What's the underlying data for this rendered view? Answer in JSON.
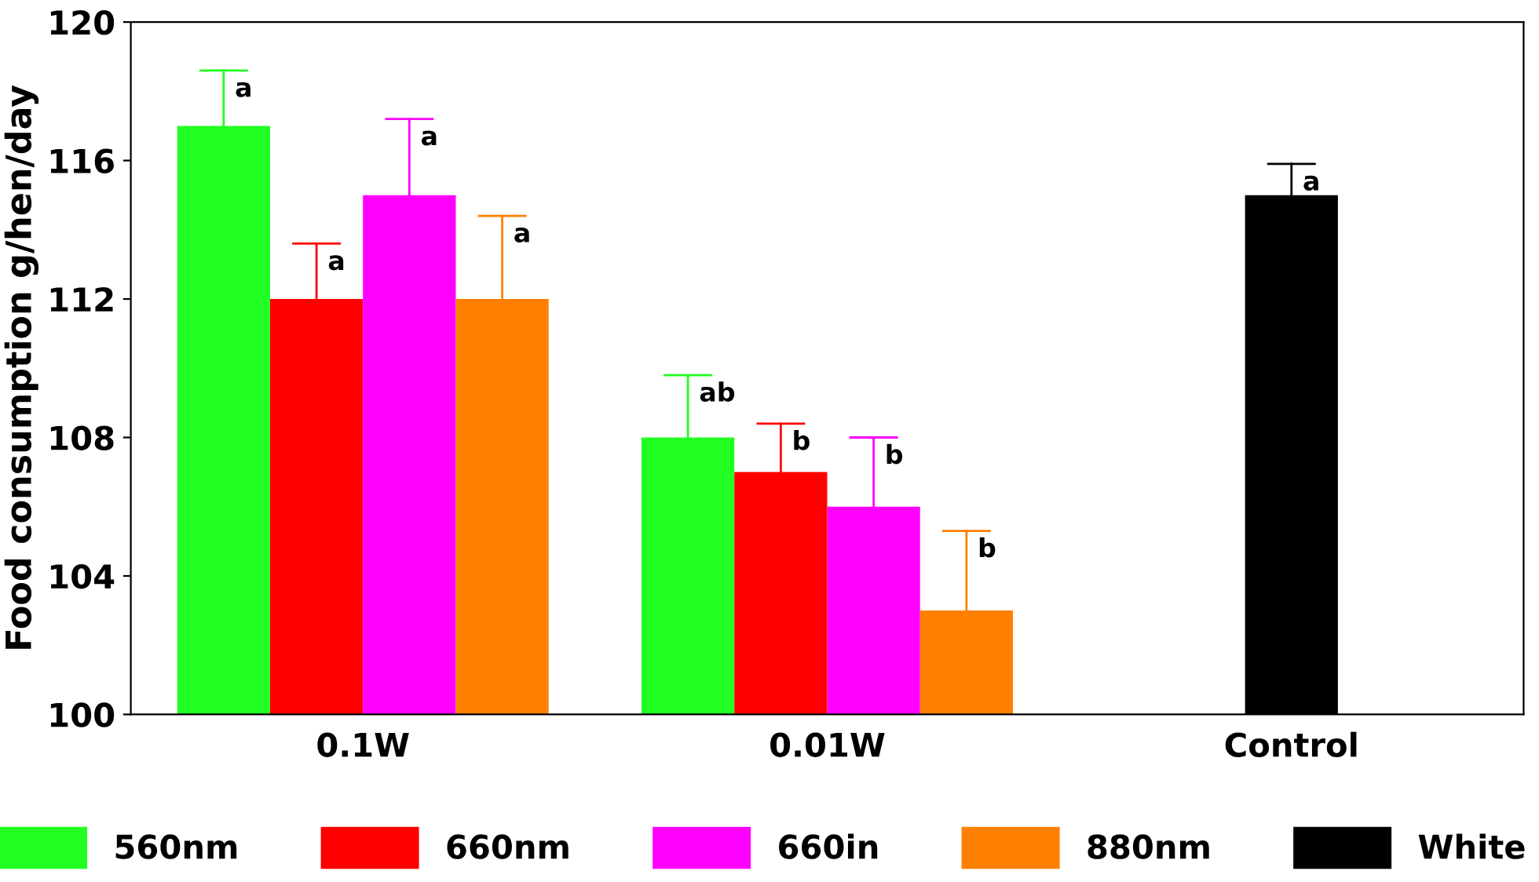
{
  "chart_data": {
    "type": "bar",
    "ylabel": "Food consumption g/hen/day",
    "categories": [
      "0.1W",
      "0.01W",
      "Control"
    ],
    "series": [
      {
        "name": "560nm",
        "color": "#22ff22",
        "values": [
          117,
          108,
          null
        ],
        "errors": [
          [
            117,
            118.6
          ],
          [
            108,
            109.8
          ],
          null
        ],
        "value_labels": [
          "a",
          "ab",
          null
        ]
      },
      {
        "name": "660nm",
        "color": "#ff0000",
        "values": [
          112,
          107,
          null
        ],
        "errors": [
          [
            112,
            113.6
          ],
          [
            107,
            108.4
          ],
          null
        ],
        "value_labels": [
          "a",
          "b",
          null
        ]
      },
      {
        "name": "660in",
        "color": "#ff00ff",
        "values": [
          115,
          106,
          null
        ],
        "errors": [
          [
            115,
            117.2
          ],
          [
            106,
            108.0
          ],
          null
        ],
        "value_labels": [
          "a",
          "b",
          null
        ]
      },
      {
        "name": "880nm",
        "color": "#ff8000",
        "values": [
          112,
          103,
          null
        ],
        "errors": [
          [
            112,
            114.4
          ],
          [
            103,
            105.3
          ],
          null
        ],
        "value_labels": [
          "a",
          "b",
          null
        ]
      },
      {
        "name": "White",
        "color": "#000000",
        "values": [
          null,
          null,
          115
        ],
        "errors": [
          null,
          null,
          [
            115,
            115.9
          ]
        ],
        "value_labels": [
          null,
          null,
          "a"
        ]
      }
    ],
    "ylim": [
      100,
      120
    ],
    "yticks": [
      100,
      104,
      108,
      112,
      116,
      120
    ],
    "grid": false,
    "legend": "bottom"
  }
}
